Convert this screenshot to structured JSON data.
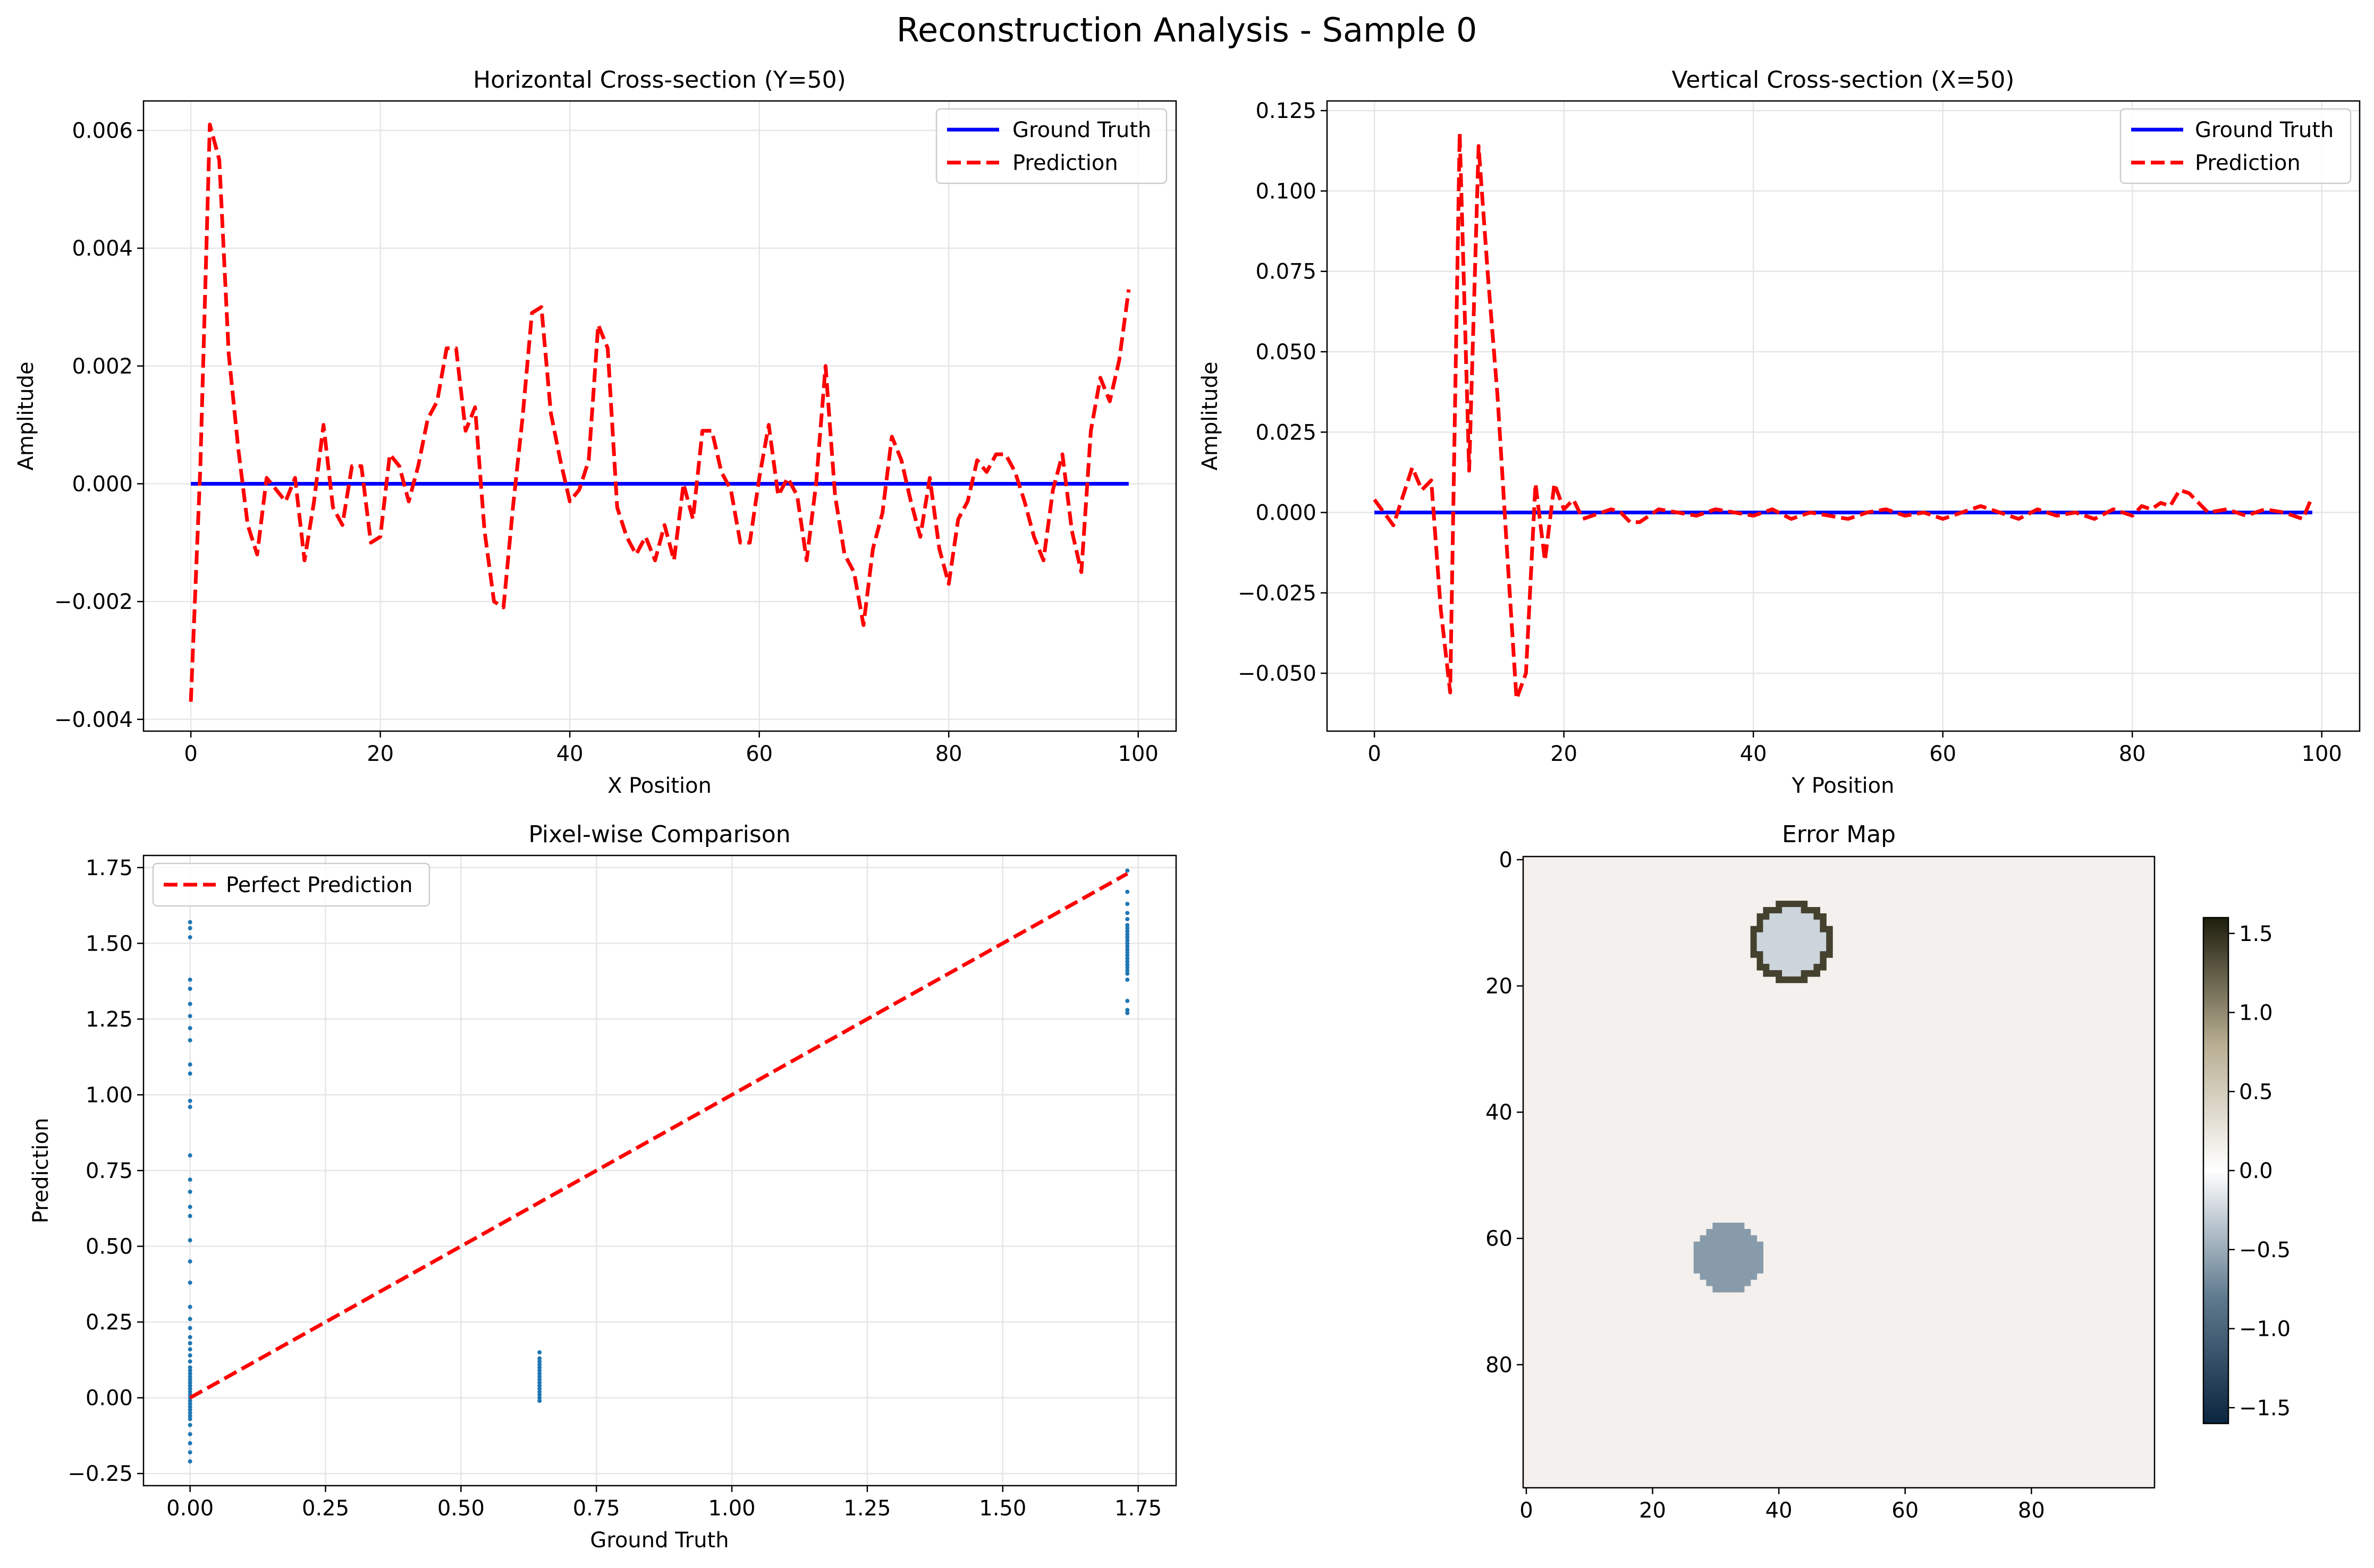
{
  "figure": {
    "title": "Reconstruction Analysis - Sample 0",
    "panels": {
      "horizontal": {
        "title": "Horizontal Cross-section (Y=50)",
        "xlabel": "X Position",
        "ylabel": "Amplitude"
      },
      "vertical": {
        "title": "Vertical Cross-section (X=50)",
        "xlabel": "Y Position",
        "ylabel": "Amplitude"
      },
      "scatter": {
        "title": "Pixel-wise Comparison",
        "xlabel": "Ground Truth",
        "ylabel": "Prediction"
      },
      "error": {
        "title": "Error Map"
      }
    }
  },
  "colors": {
    "ground_truth": "#0000ff",
    "prediction": "#ff0000",
    "scatter_points": "#1f77b4",
    "grid": "#e6e6e6",
    "error_background": "#f3f0ed"
  },
  "chart_data": [
    {
      "type": "line",
      "title": "Horizontal Cross-section (Y=50)",
      "xlabel": "X Position",
      "ylabel": "Amplitude",
      "xlim": [
        -5,
        104
      ],
      "ylim": [
        -0.0042,
        0.0065
      ],
      "xticks": [
        0,
        20,
        40,
        60,
        80,
        100
      ],
      "xtick_labels": [
        "0",
        "20",
        "40",
        "60",
        "80",
        "100"
      ],
      "yticks": [
        -0.004,
        -0.002,
        0.0,
        0.002,
        0.004,
        0.006
      ],
      "ytick_labels": [
        "−0.004",
        "−0.002",
        "0.000",
        "0.002",
        "0.004",
        "0.006"
      ],
      "grid": true,
      "legend": "top-right",
      "series": [
        {
          "name": "Ground Truth",
          "style": "solid",
          "x": [
            0,
            99
          ],
          "y": [
            0.0,
            0.0
          ]
        },
        {
          "name": "Prediction",
          "style": "dashed",
          "x": [
            0,
            1,
            2,
            3,
            4,
            5,
            6,
            7,
            8,
            9,
            10,
            11,
            12,
            13,
            14,
            15,
            16,
            17,
            18,
            19,
            20,
            21,
            22,
            23,
            24,
            25,
            26,
            27,
            28,
            29,
            30,
            31,
            32,
            33,
            34,
            35,
            36,
            37,
            38,
            39,
            40,
            41,
            42,
            43,
            44,
            45,
            46,
            47,
            48,
            49,
            50,
            51,
            52,
            53,
            54,
            55,
            56,
            57,
            58,
            59,
            60,
            61,
            62,
            63,
            64,
            65,
            66,
            67,
            68,
            69,
            70,
            71,
            72,
            73,
            74,
            75,
            76,
            77,
            78,
            79,
            80,
            81,
            82,
            83,
            84,
            85,
            86,
            87,
            88,
            89,
            90,
            91,
            92,
            93,
            94,
            95,
            96,
            97,
            98,
            99
          ],
          "y": [
            -0.0037,
            0.0003,
            0.0061,
            0.0055,
            0.0022,
            0.0006,
            -0.0007,
            -0.0012,
            0.0001,
            -0.0001,
            -0.0003,
            0.0001,
            -0.0013,
            -0.0003,
            0.001,
            -0.0004,
            -0.0007,
            0.0003,
            0.0003,
            -0.001,
            -0.0009,
            0.0005,
            0.0003,
            -0.0003,
            0.0003,
            0.0011,
            0.0014,
            0.0023,
            0.0023,
            0.0009,
            0.0013,
            -0.0008,
            -0.002,
            -0.0021,
            -0.0004,
            0.0011,
            0.0029,
            0.003,
            0.0012,
            0.0004,
            -0.0003,
            -0.0001,
            0.0004,
            0.0027,
            0.0023,
            -0.0004,
            -0.0009,
            -0.0012,
            -0.0009,
            -0.0013,
            -0.0007,
            -0.0013,
            0.0,
            -0.0006,
            0.0009,
            0.0009,
            0.0002,
            -0.0001,
            -0.001,
            -0.001,
            0.0001,
            0.001,
            -0.0002,
            0.0001,
            -0.0002,
            -0.0013,
            0.0,
            0.002,
            -0.0002,
            -0.0012,
            -0.0015,
            -0.0024,
            -0.0011,
            -0.0005,
            0.0008,
            0.0004,
            -0.0003,
            -0.0009,
            0.0001,
            -0.0011,
            -0.0017,
            -0.0006,
            -0.0003,
            0.0004,
            0.0002,
            0.0005,
            0.0005,
            0.0002,
            -0.0003,
            -0.0009,
            -0.0013,
            -0.0001,
            0.0005,
            -0.0008,
            -0.0015,
            0.0009,
            0.0018,
            0.0014,
            0.0021,
            0.0033
          ]
        }
      ]
    },
    {
      "type": "line",
      "title": "Vertical Cross-section (X=50)",
      "xlabel": "Y Position",
      "ylabel": "Amplitude",
      "xlim": [
        -5,
        104
      ],
      "ylim": [
        -0.068,
        0.128
      ],
      "xticks": [
        0,
        20,
        40,
        60,
        80,
        100
      ],
      "xtick_labels": [
        "0",
        "20",
        "40",
        "60",
        "80",
        "100"
      ],
      "yticks": [
        -0.05,
        -0.025,
        0.0,
        0.025,
        0.05,
        0.075,
        0.1,
        0.125
      ],
      "ytick_labels": [
        "−0.050",
        "−0.025",
        "0.000",
        "0.025",
        "0.050",
        "0.075",
        "0.100",
        "0.125"
      ],
      "grid": true,
      "legend": "top-right",
      "series": [
        {
          "name": "Ground Truth",
          "style": "solid",
          "x": [
            0,
            99
          ],
          "y": [
            0.0,
            0.0
          ]
        },
        {
          "name": "Prediction",
          "style": "dashed",
          "x": [
            0,
            1,
            2,
            3,
            4,
            5,
            6,
            7,
            8,
            9,
            10,
            11,
            12,
            13,
            14,
            15,
            16,
            17,
            18,
            19,
            20,
            21,
            22,
            23,
            24,
            25,
            26,
            27,
            28,
            29,
            30,
            32,
            34,
            36,
            38,
            40,
            42,
            44,
            46,
            48,
            50,
            52,
            54,
            56,
            58,
            60,
            62,
            64,
            66,
            68,
            70,
            72,
            74,
            76,
            78,
            80,
            81,
            82,
            83,
            84,
            85,
            86,
            88,
            90,
            92,
            94,
            96,
            98,
            99
          ],
          "y": [
            0.004,
            0.0,
            -0.004,
            0.005,
            0.014,
            0.007,
            0.01,
            -0.03,
            -0.056,
            0.118,
            0.013,
            0.114,
            0.073,
            0.036,
            -0.012,
            -0.058,
            -0.05,
            0.009,
            -0.015,
            0.009,
            0.001,
            0.004,
            -0.002,
            -0.001,
            0.0,
            0.001,
            0.0,
            -0.003,
            -0.003,
            -0.001,
            0.001,
            0.0,
            -0.001,
            0.001,
            0.0,
            -0.001,
            0.001,
            -0.002,
            0.0,
            -0.001,
            -0.002,
            0.0,
            0.001,
            -0.001,
            0.0,
            -0.002,
            0.0,
            0.002,
            0.0,
            -0.002,
            0.001,
            -0.001,
            0.0,
            -0.002,
            0.001,
            -0.001,
            0.002,
            0.001,
            0.003,
            0.002,
            0.007,
            0.006,
            0.0,
            0.001,
            -0.001,
            0.001,
            0.0,
            -0.002,
            0.005
          ]
        }
      ]
    },
    {
      "type": "scatter",
      "title": "Pixel-wise Comparison",
      "xlabel": "Ground Truth",
      "ylabel": "Prediction",
      "xlim": [
        -0.086,
        1.82
      ],
      "ylim": [
        -0.29,
        1.79
      ],
      "xticks": [
        0,
        0.25,
        0.5,
        0.75,
        1.0,
        1.25,
        1.5,
        1.75
      ],
      "xtick_labels": [
        "0.00",
        "0.25",
        "0.50",
        "0.75",
        "1.00",
        "1.25",
        "1.50",
        "1.75"
      ],
      "yticks": [
        -0.25,
        0.0,
        0.25,
        0.5,
        0.75,
        1.0,
        1.25,
        1.5,
        1.75
      ],
      "ytick_labels": [
        "−0.25",
        "0.00",
        "0.25",
        "0.50",
        "0.75",
        "1.00",
        "1.25",
        "1.50",
        "1.75"
      ],
      "grid": true,
      "legend": "top-left",
      "series": [
        {
          "name": "Perfect Prediction",
          "style": "dashed",
          "x": [
            0,
            1.73
          ],
          "y": [
            0,
            1.73
          ]
        },
        {
          "name": "",
          "style": "points",
          "x": [
            0,
            0,
            0,
            0,
            0,
            0,
            0,
            0,
            0,
            0,
            0,
            0,
            0,
            0,
            0,
            0,
            0,
            0,
            0,
            0,
            0,
            0,
            0,
            0,
            0,
            0,
            0,
            0,
            0,
            0,
            0,
            0,
            0,
            0,
            0,
            0,
            0,
            0,
            0,
            0,
            0,
            0,
            0,
            0,
            0,
            0,
            0,
            0,
            0,
            0,
            0,
            0,
            0.645,
            0.645,
            0.645,
            0.645,
            0.645,
            0.645,
            0.645,
            0.645,
            0.645,
            0.645,
            0.645,
            0.645,
            0.645,
            0.645,
            0.645,
            0.645,
            1.73,
            1.73,
            1.73,
            1.73,
            1.73,
            1.73,
            1.73,
            1.73,
            1.73,
            1.73,
            1.73,
            1.73,
            1.73,
            1.73,
            1.73,
            1.73,
            1.73,
            1.73,
            1.73,
            1.73,
            1.73,
            1.73,
            1.73,
            1.73,
            1.73,
            1.73
          ],
          "y": [
            1.57,
            1.55,
            1.52,
            1.38,
            1.35,
            1.3,
            1.26,
            1.22,
            1.18,
            1.1,
            1.07,
            0.98,
            0.96,
            0.8,
            0.72,
            0.68,
            0.63,
            0.6,
            0.52,
            0.45,
            0.38,
            0.3,
            0.26,
            0.23,
            0.2,
            0.18,
            0.16,
            0.14,
            0.12,
            0.1,
            0.09,
            0.08,
            0.07,
            0.06,
            0.05,
            0.04,
            0.03,
            0.02,
            0.01,
            0.0,
            -0.01,
            -0.02,
            -0.03,
            -0.04,
            -0.05,
            -0.06,
            -0.07,
            -0.09,
            -0.12,
            -0.15,
            -0.18,
            -0.21,
            0.15,
            0.13,
            0.12,
            0.11,
            0.1,
            0.09,
            0.08,
            0.07,
            0.06,
            0.05,
            0.04,
            0.03,
            0.02,
            0.01,
            0.0,
            -0.01,
            1.74,
            1.67,
            1.63,
            1.6,
            1.58,
            1.56,
            1.55,
            1.54,
            1.53,
            1.52,
            1.51,
            1.5,
            1.49,
            1.48,
            1.47,
            1.46,
            1.45,
            1.44,
            1.43,
            1.42,
            1.41,
            1.4,
            1.38,
            1.31,
            1.28,
            1.27
          ]
        }
      ]
    },
    {
      "type": "heatmap",
      "title": "Error Map",
      "xlim": [
        0,
        99
      ],
      "ylim": [
        99,
        0
      ],
      "xticks": [
        0,
        20,
        40,
        60,
        80
      ],
      "xtick_labels": [
        "0",
        "20",
        "40",
        "60",
        "80"
      ],
      "yticks": [
        0,
        20,
        40,
        60,
        80
      ],
      "ytick_labels": [
        "0",
        "20",
        "40",
        "60",
        "80"
      ],
      "background_value": 0.05,
      "features": [
        {
          "label": "upper",
          "center_x": 42,
          "center_y": 13,
          "radius": 6.5,
          "interior_value": -0.25,
          "rim_value": 1.4
        },
        {
          "label": "lower",
          "center_x": 32,
          "center_y": 63,
          "radius": 5.5,
          "interior_value": -0.6,
          "rim_value": -0.6
        }
      ],
      "colorbar": {
        "range": [
          -1.6,
          1.6
        ],
        "ticks": [
          1.5,
          1.0,
          0.5,
          0.0,
          -0.5,
          -1.0,
          -1.5
        ],
        "tick_labels": [
          "1.5",
          "1.0",
          "0.5",
          "0.0",
          "−0.5",
          "−1.0",
          "−1.5"
        ],
        "colors": [
          "#0b2540",
          "#5f7a8e",
          "#ffffff",
          "#b8ae92",
          "#1d1d0c"
        ]
      }
    }
  ]
}
